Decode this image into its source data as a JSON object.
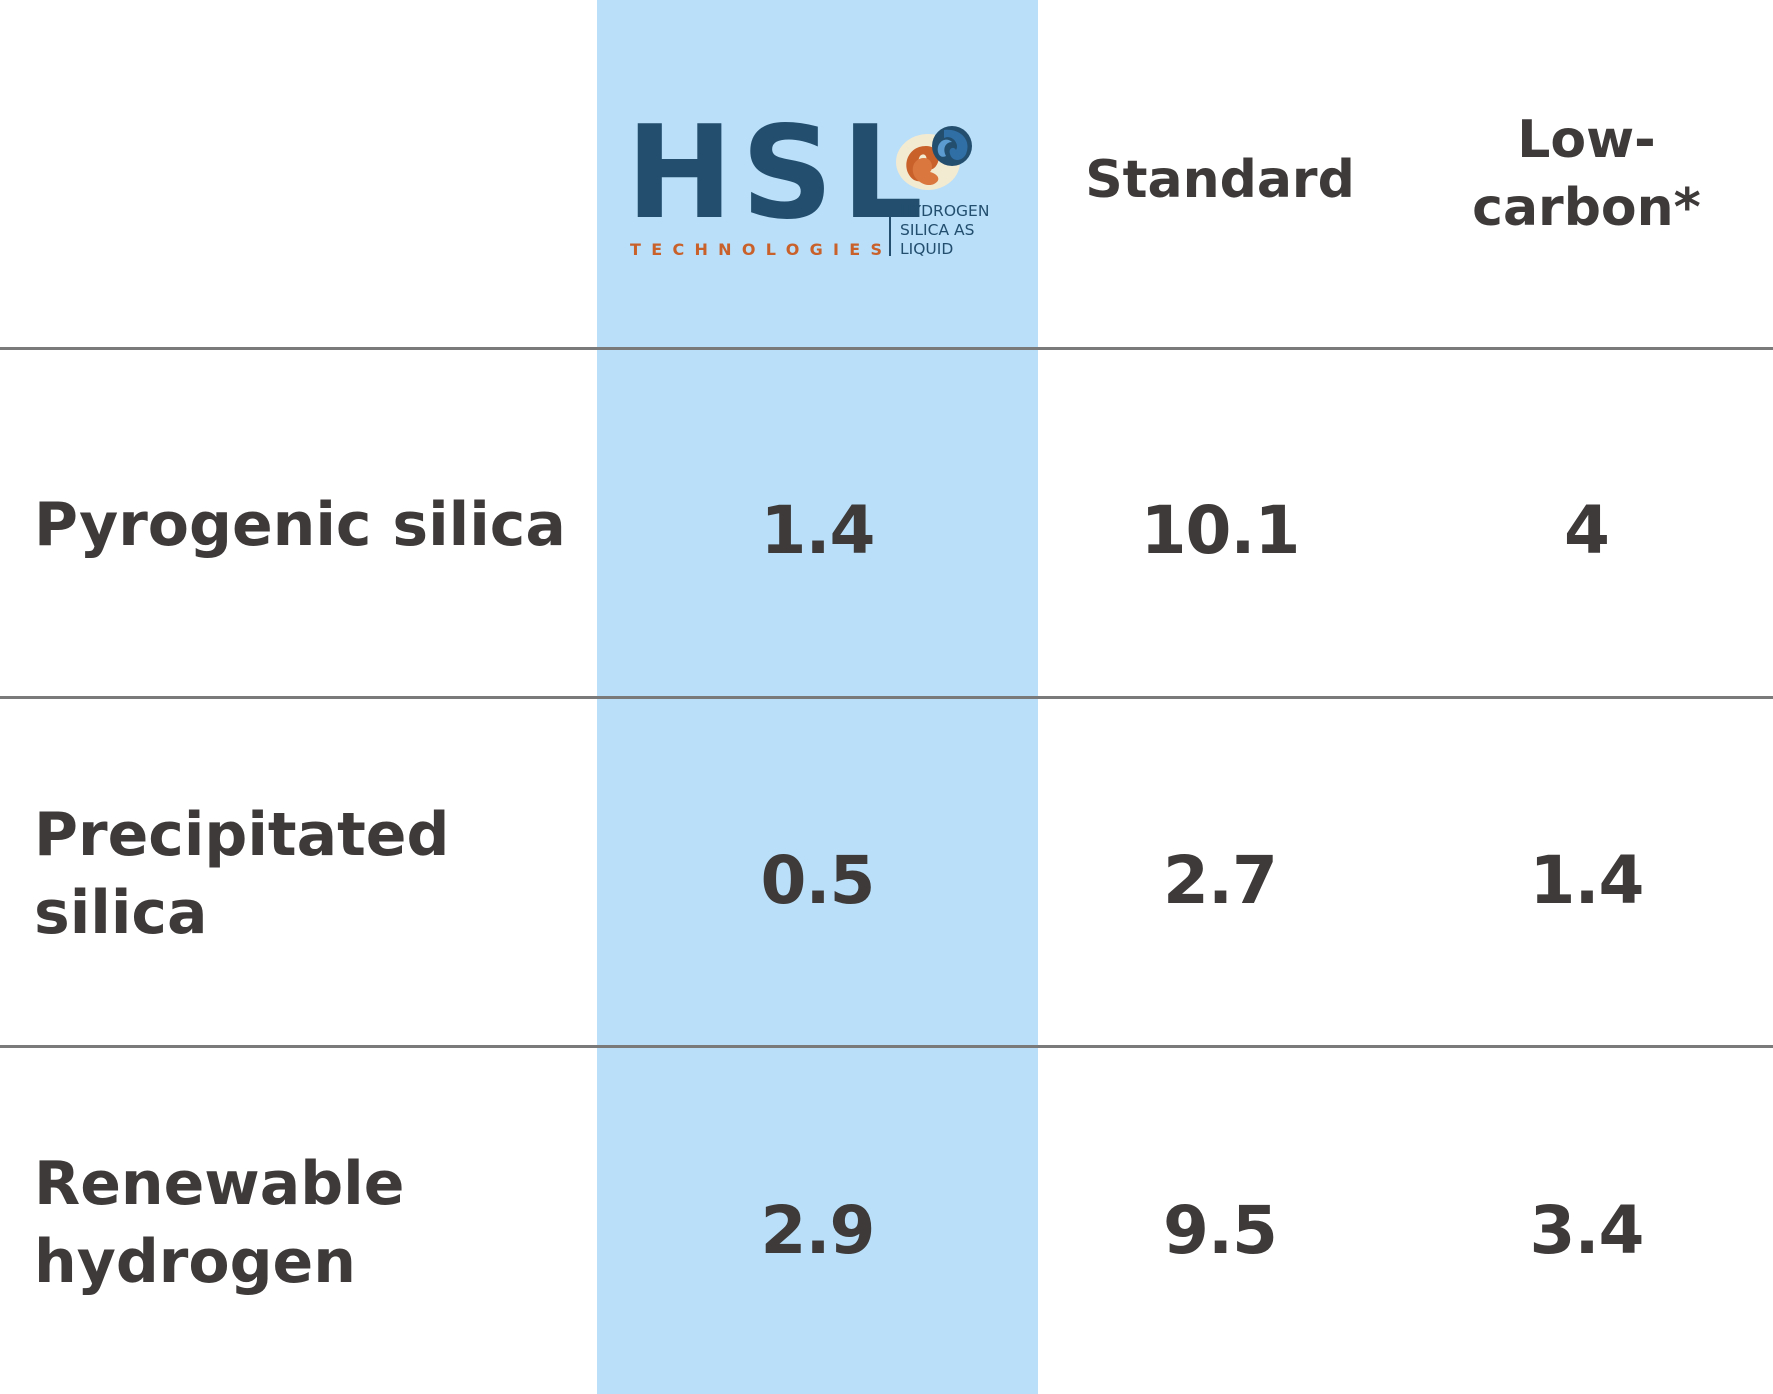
{
  "chart_data": {
    "type": "table",
    "columns": [
      "HSL Technologies",
      "Standard",
      "Low-carbon*"
    ],
    "rows": [
      {
        "label": "Pyrogenic silica",
        "values": [
          "1.4",
          "10.1",
          "4"
        ]
      },
      {
        "label": "Precipitated silica",
        "values": [
          "0.5",
          "2.7",
          "1.4"
        ]
      },
      {
        "label": "Renewable hydrogen",
        "values": [
          "2.9",
          "9.5",
          "3.4"
        ]
      }
    ],
    "highlight_column": "HSL Technologies",
    "highlight_color": "#b9dff9"
  },
  "header": {
    "logo": {
      "wordmark": "HSL",
      "tagline": "TECHNOLOGIES",
      "sub_lines": [
        "HYDROGEN",
        "SILICA AS",
        "LIQUID"
      ],
      "colors": {
        "navy": "#234e6e",
        "orange": "#c9612b",
        "blue": "#2f6fa6",
        "cream": "#f3ead2"
      }
    },
    "standard": "Standard",
    "low_carbon_line1": "Low-",
    "low_carbon_line2": "carbon*"
  },
  "rows": {
    "r1": {
      "label": "Pyrogenic silica",
      "hsl": "1.4",
      "standard": "10.1",
      "low_carbon": "4"
    },
    "r2": {
      "label_line1": "Precipitated",
      "label_line2": "silica",
      "hsl": "0.5",
      "standard": "2.7",
      "low_carbon": "1.4"
    },
    "r3": {
      "label_line1": "Renewable",
      "label_line2": "hydrogen",
      "hsl": "2.9",
      "standard": "9.5",
      "low_carbon": "3.4"
    }
  },
  "colors": {
    "text": "#3d3a39",
    "rule": "#7a7a7a"
  }
}
